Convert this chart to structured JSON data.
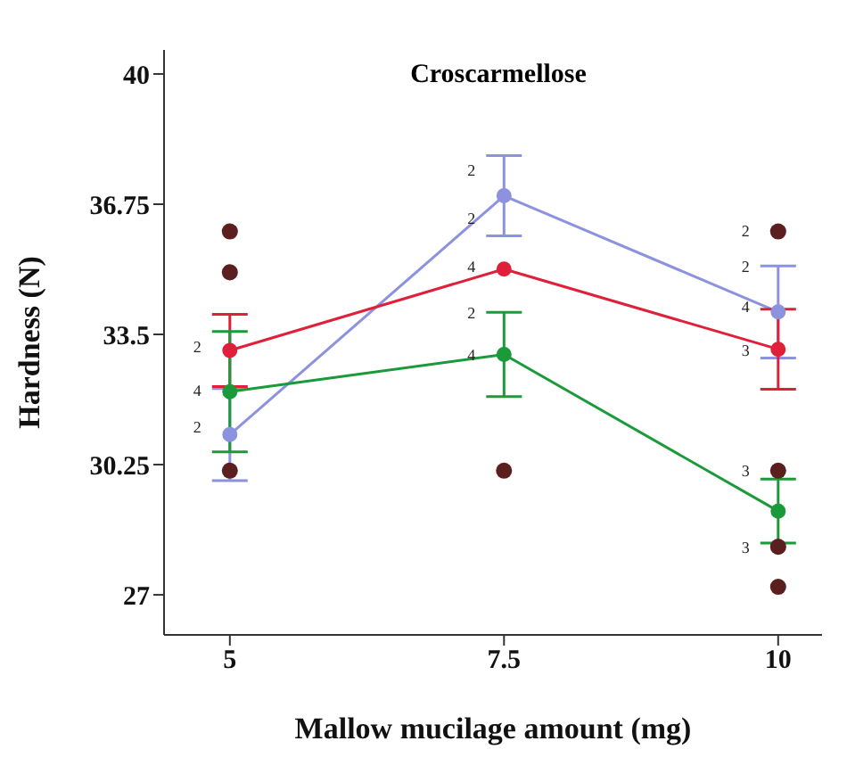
{
  "chart_data": {
    "type": "line",
    "title": "Croscarmellose",
    "xlabel": "Mallow mucilage amount (mg)",
    "ylabel": "Hardness (N)",
    "x": [
      5,
      7.5,
      10
    ],
    "series": [
      {
        "color": "#8c92de",
        "values": [
          31.0,
          36.96,
          34.06
        ],
        "errors": [
          1.15,
          1.0,
          1.15
        ]
      },
      {
        "color": "#e0203a",
        "values": [
          33.1,
          35.13,
          33.13
        ],
        "errors": [
          0.9,
          null,
          1.0
        ]
      },
      {
        "color": "#1a9a3a",
        "values": [
          32.07,
          33.0,
          29.09
        ],
        "errors": [
          1.5,
          1.05,
          0.8
        ]
      },
      {
        "type": "scatter",
        "color": "#5c1f1f",
        "x": [
          5,
          5,
          5,
          7.5,
          10,
          10,
          10,
          10
        ],
        "values": [
          36.07,
          35.05,
          30.1,
          30.1,
          36.07,
          30.1,
          28.2,
          27.2
        ]
      }
    ],
    "xlim": [
      4.4,
      10.4
    ],
    "xticks": [
      5,
      7.5,
      10
    ],
    "ylim": [
      26,
      40.6
    ],
    "yticks": [
      27,
      30.25,
      33.5,
      36.75,
      40
    ],
    "marker": "circle",
    "grid": false,
    "legend": false,
    "annotations": [
      {
        "text": "2",
        "x": 5,
        "y": 33.2
      },
      {
        "text": "4",
        "x": 5,
        "y": 32.1
      },
      {
        "text": "2",
        "x": 5,
        "y": 31.2
      },
      {
        "text": "2",
        "x": 7.5,
        "y": 37.6
      },
      {
        "text": "2",
        "x": 7.5,
        "y": 36.4
      },
      {
        "text": "4",
        "x": 7.5,
        "y": 35.2
      },
      {
        "text": "2",
        "x": 7.5,
        "y": 34.05
      },
      {
        "text": "4",
        "x": 7.5,
        "y": 33.0
      },
      {
        "text": "2",
        "x": 10,
        "y": 36.1
      },
      {
        "text": "2",
        "x": 10,
        "y": 35.2
      },
      {
        "text": "4",
        "x": 10,
        "y": 34.2
      },
      {
        "text": "3",
        "x": 10,
        "y": 33.1
      },
      {
        "text": "3",
        "x": 10,
        "y": 30.1
      },
      {
        "text": "3",
        "x": 10,
        "y": 28.2
      }
    ]
  }
}
